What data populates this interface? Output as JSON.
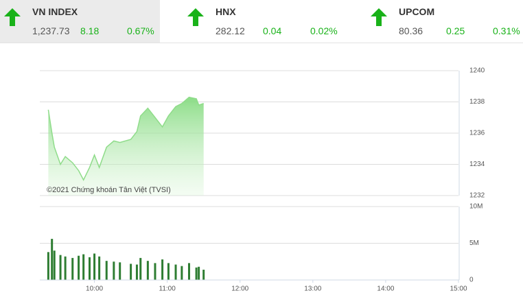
{
  "header": {
    "items": [
      {
        "name": "VN INDEX",
        "value": "1,237.73",
        "change": "8.18",
        "percent": "0.67%"
      },
      {
        "name": "HNX",
        "value": "282.12",
        "change": "0.04",
        "percent": "0.02%"
      },
      {
        "name": "UPCOM",
        "value": "80.36",
        "change": "0.25",
        "percent": "0.31%"
      }
    ]
  },
  "chart_data": [
    {
      "type": "line",
      "annotation": "©2021 Chứng khoán Tân Việt (TVSI)",
      "x": [
        "09:22",
        "09:25",
        "09:27",
        "09:32",
        "09:36",
        "09:42",
        "09:47",
        "09:51",
        "09:56",
        "10:00",
        "10:04",
        "10:10",
        "10:16",
        "10:21",
        "10:30",
        "10:35",
        "10:38",
        "10:44",
        "10:50",
        "10:56",
        "11:01",
        "11:07",
        "11:12",
        "11:18",
        "11:24",
        "11:26",
        "11:30"
      ],
      "series": [
        {
          "name": "VN INDEX",
          "color": "#8fdc8a",
          "values": [
            1237.5,
            1236.0,
            1235.1,
            1234.0,
            1234.5,
            1234.1,
            1233.6,
            1233.0,
            1233.8,
            1234.6,
            1233.8,
            1235.1,
            1235.5,
            1235.4,
            1235.6,
            1236.1,
            1237.1,
            1237.6,
            1237.0,
            1236.4,
            1237.1,
            1237.7,
            1237.9,
            1238.3,
            1238.2,
            1237.8,
            1237.9
          ]
        }
      ],
      "xlim": [
        "09:15",
        "15:00"
      ],
      "ylim": [
        1232,
        1240
      ],
      "yticks": [
        1232,
        1234,
        1236,
        1238,
        1240
      ],
      "grid": true
    },
    {
      "type": "bar",
      "color": "#2e7d32",
      "x": [
        "09:22",
        "09:25",
        "09:27",
        "09:32",
        "09:36",
        "09:42",
        "09:47",
        "09:51",
        "09:56",
        "10:00",
        "10:04",
        "10:10",
        "10:16",
        "10:21",
        "10:30",
        "10:35",
        "10:38",
        "10:44",
        "10:50",
        "10:56",
        "11:01",
        "11:07",
        "11:12",
        "11:18",
        "11:24",
        "11:26",
        "11:30"
      ],
      "values": [
        3800000,
        5600000,
        4000000,
        3400000,
        3200000,
        3000000,
        3300000,
        3500000,
        3100000,
        3600000,
        3200000,
        2600000,
        2500000,
        2400000,
        2200000,
        2100000,
        3000000,
        2600000,
        2300000,
        2800000,
        2300000,
        2100000,
        1900000,
        2300000,
        1700000,
        1800000,
        1400000
      ],
      "xlim": [
        "09:15",
        "15:00"
      ],
      "ylim": [
        0,
        10000000
      ],
      "yticks": [
        {
          "value": 0,
          "label": "0"
        },
        {
          "value": 5000000,
          "label": "5M"
        },
        {
          "value": 10000000,
          "label": "10M"
        }
      ],
      "xticks": [
        "10:00",
        "11:00",
        "12:00",
        "13:00",
        "14:00",
        "15:00"
      ],
      "grid": true
    }
  ]
}
